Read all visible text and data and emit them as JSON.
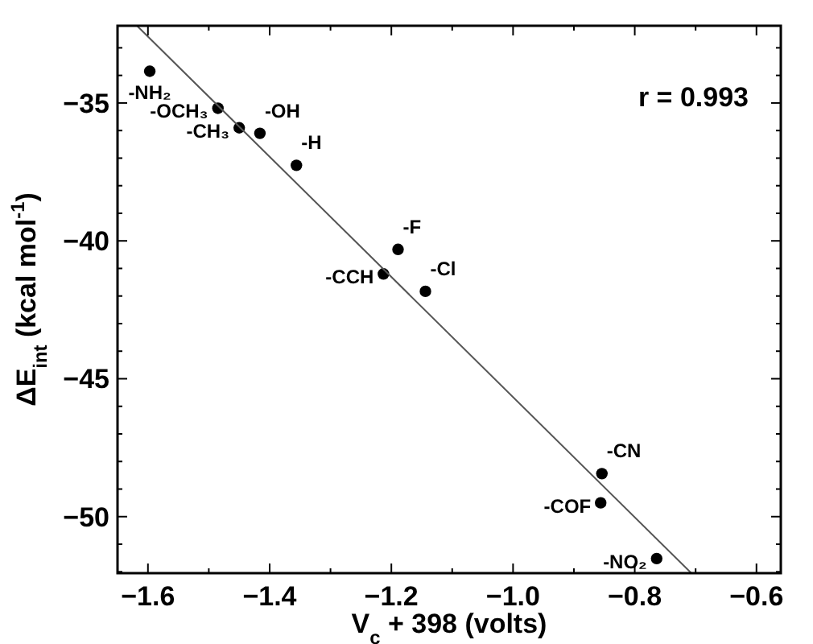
{
  "chart_data": {
    "type": "scatter",
    "xlabel": "V$_{c}$ + 398 (volts)",
    "ylabel": "ΔE$_{int}$ (kcal mol$^{-1}$)",
    "xlim": [
      -1.65,
      -0.56
    ],
    "ylim": [
      -52.05,
      -32.2
    ],
    "xticks": [
      {
        "value": -1.6,
        "label": "−1.6"
      },
      {
        "value": -1.5,
        "label": null
      },
      {
        "value": -1.4,
        "label": "−1.4"
      },
      {
        "value": -1.3,
        "label": null
      },
      {
        "value": -1.2,
        "label": "−1.2"
      },
      {
        "value": -1.1,
        "label": null
      },
      {
        "value": -1.0,
        "label": "−1.0"
      },
      {
        "value": -0.9,
        "label": null
      },
      {
        "value": -0.8,
        "label": "−0.8"
      },
      {
        "value": -0.7,
        "label": null
      },
      {
        "value": -0.6,
        "label": "−0.6"
      }
    ],
    "yticks": [
      {
        "value": -33,
        "label": null
      },
      {
        "value": -34,
        "label": null
      },
      {
        "value": -35,
        "label": "−35"
      },
      {
        "value": -36,
        "label": null
      },
      {
        "value": -37,
        "label": null
      },
      {
        "value": -38,
        "label": null
      },
      {
        "value": -39,
        "label": null
      },
      {
        "value": -40,
        "label": "−40"
      },
      {
        "value": -41,
        "label": null
      },
      {
        "value": -42,
        "label": null
      },
      {
        "value": -43,
        "label": null
      },
      {
        "value": -44,
        "label": null
      },
      {
        "value": -45,
        "label": "−45"
      },
      {
        "value": -46,
        "label": null
      },
      {
        "value": -47,
        "label": null
      },
      {
        "value": -48,
        "label": null
      },
      {
        "value": -49,
        "label": null
      },
      {
        "value": -50,
        "label": "−50"
      },
      {
        "value": -51,
        "label": null
      },
      {
        "value": -52,
        "label": null
      }
    ],
    "grid": false,
    "marker": "circle",
    "series": [
      {
        "color": "#000000",
        "x": [
          -1.597,
          -1.485,
          -1.45,
          -1.416,
          -1.356,
          -1.189,
          -1.213,
          -1.144,
          -0.854,
          -0.856,
          -0.764
        ],
        "values": [
          -33.85,
          -35.19,
          -35.9,
          -36.1,
          -37.26,
          -40.31,
          -41.2,
          -41.83,
          -48.44,
          -49.5,
          -51.52
        ]
      },
      {
        "type": "line",
        "color": "#555555",
        "line_style": "solid",
        "marker": "none",
        "x": [
          -1.618,
          -0.707
        ],
        "values": [
          -32.2,
          -52.05
        ]
      }
    ],
    "annotations": [
      "r = 0.993",
      {
        "text": "-NH₂",
        "x": -1.597,
        "y": -33.85
      },
      {
        "text": "-OCH₃",
        "x": -1.485,
        "y": -35.19
      },
      {
        "text": "-CH₃",
        "x": -1.45,
        "y": -35.9
      },
      {
        "text": "-OH",
        "x": -1.416,
        "y": -36.1
      },
      {
        "text": "-H",
        "x": -1.356,
        "y": -37.26
      },
      {
        "text": "-F",
        "x": -1.189,
        "y": -40.31
      },
      {
        "text": "-CCH",
        "x": -1.213,
        "y": -41.2
      },
      {
        "text": "-Cl",
        "x": -1.144,
        "y": -41.83
      },
      {
        "text": "-CN",
        "x": -0.854,
        "y": -48.44
      },
      {
        "text": "-COF",
        "x": -0.856,
        "y": -49.5
      },
      {
        "text": "-NO₂",
        "x": -0.764,
        "y": -51.52
      }
    ]
  }
}
